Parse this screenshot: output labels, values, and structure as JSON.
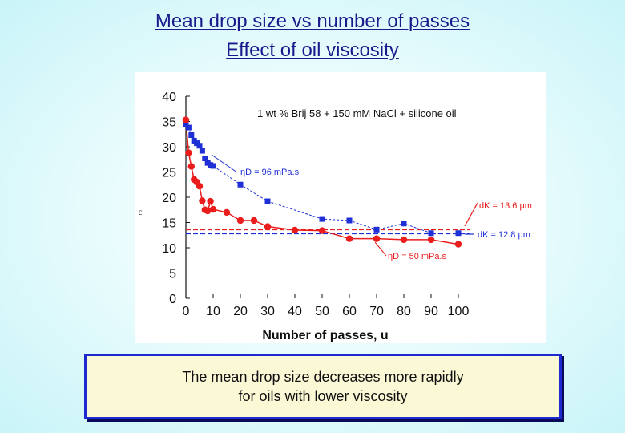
{
  "slide": {
    "title_line1": "Mean drop size vs number of passes",
    "title_line2": "Effect of oil viscosity",
    "caption_line1": "The mean drop size decreases more rapidly",
    "caption_line2": "for oils with lower viscosity"
  },
  "colors": {
    "series_96": "#1f2fd6",
    "series_50": "#ea1c1c",
    "title": "#1a1a8c",
    "caption_border": "#1e2ad0",
    "caption_bg": "#fbf8d6"
  },
  "chart_data": {
    "type": "line",
    "xlabel": "Number of passes, u",
    "ylabel": "ε",
    "xlim": [
      0,
      100
    ],
    "ylim": [
      0,
      40
    ],
    "xticks": [
      0,
      10,
      20,
      30,
      40,
      50,
      60,
      70,
      80,
      90,
      100
    ],
    "yticks": [
      0,
      5,
      10,
      15,
      20,
      25,
      30,
      35,
      40
    ],
    "annotation": "1 wt % Brij 58 + 150 mM NaCl + silicone oil",
    "grid": false,
    "series": [
      {
        "name": "ηD = 96 mPa.s",
        "marker": "square",
        "x": [
          0,
          1,
          2,
          3,
          4,
          5,
          6,
          7,
          8,
          9,
          10,
          20,
          30,
          50,
          60,
          70,
          80,
          90,
          100
        ],
        "y": [
          34.5,
          33.8,
          32.3,
          31.2,
          30.7,
          30.2,
          29.2,
          27.7,
          26.8,
          26.4,
          26.2,
          22.5,
          19.2,
          15.7,
          15.4,
          13.6,
          14.8,
          12.9,
          12.9
        ]
      },
      {
        "name": "ηD = 50 mPa.s",
        "marker": "circle",
        "x": [
          0,
          1,
          2,
          3,
          4,
          5,
          6,
          7,
          8,
          9,
          10,
          15,
          20,
          25,
          30,
          40,
          50,
          60,
          70,
          80,
          90,
          100
        ],
        "y": [
          35.3,
          28.8,
          26.1,
          23.5,
          23.0,
          22.2,
          19.3,
          17.5,
          17.3,
          19.2,
          17.6,
          17.0,
          15.4,
          15.4,
          14.2,
          13.5,
          13.4,
          11.8,
          11.8,
          11.6,
          11.6,
          10.7
        ]
      }
    ],
    "reference_lines": [
      {
        "label": "dK = 13.6 μm",
        "y": 13.6,
        "style": "dashed",
        "color": "#ea1c1c"
      },
      {
        "label": "dK = 12.8 μm",
        "y": 12.8,
        "style": "dashed",
        "color": "#1f2fd6"
      }
    ]
  }
}
